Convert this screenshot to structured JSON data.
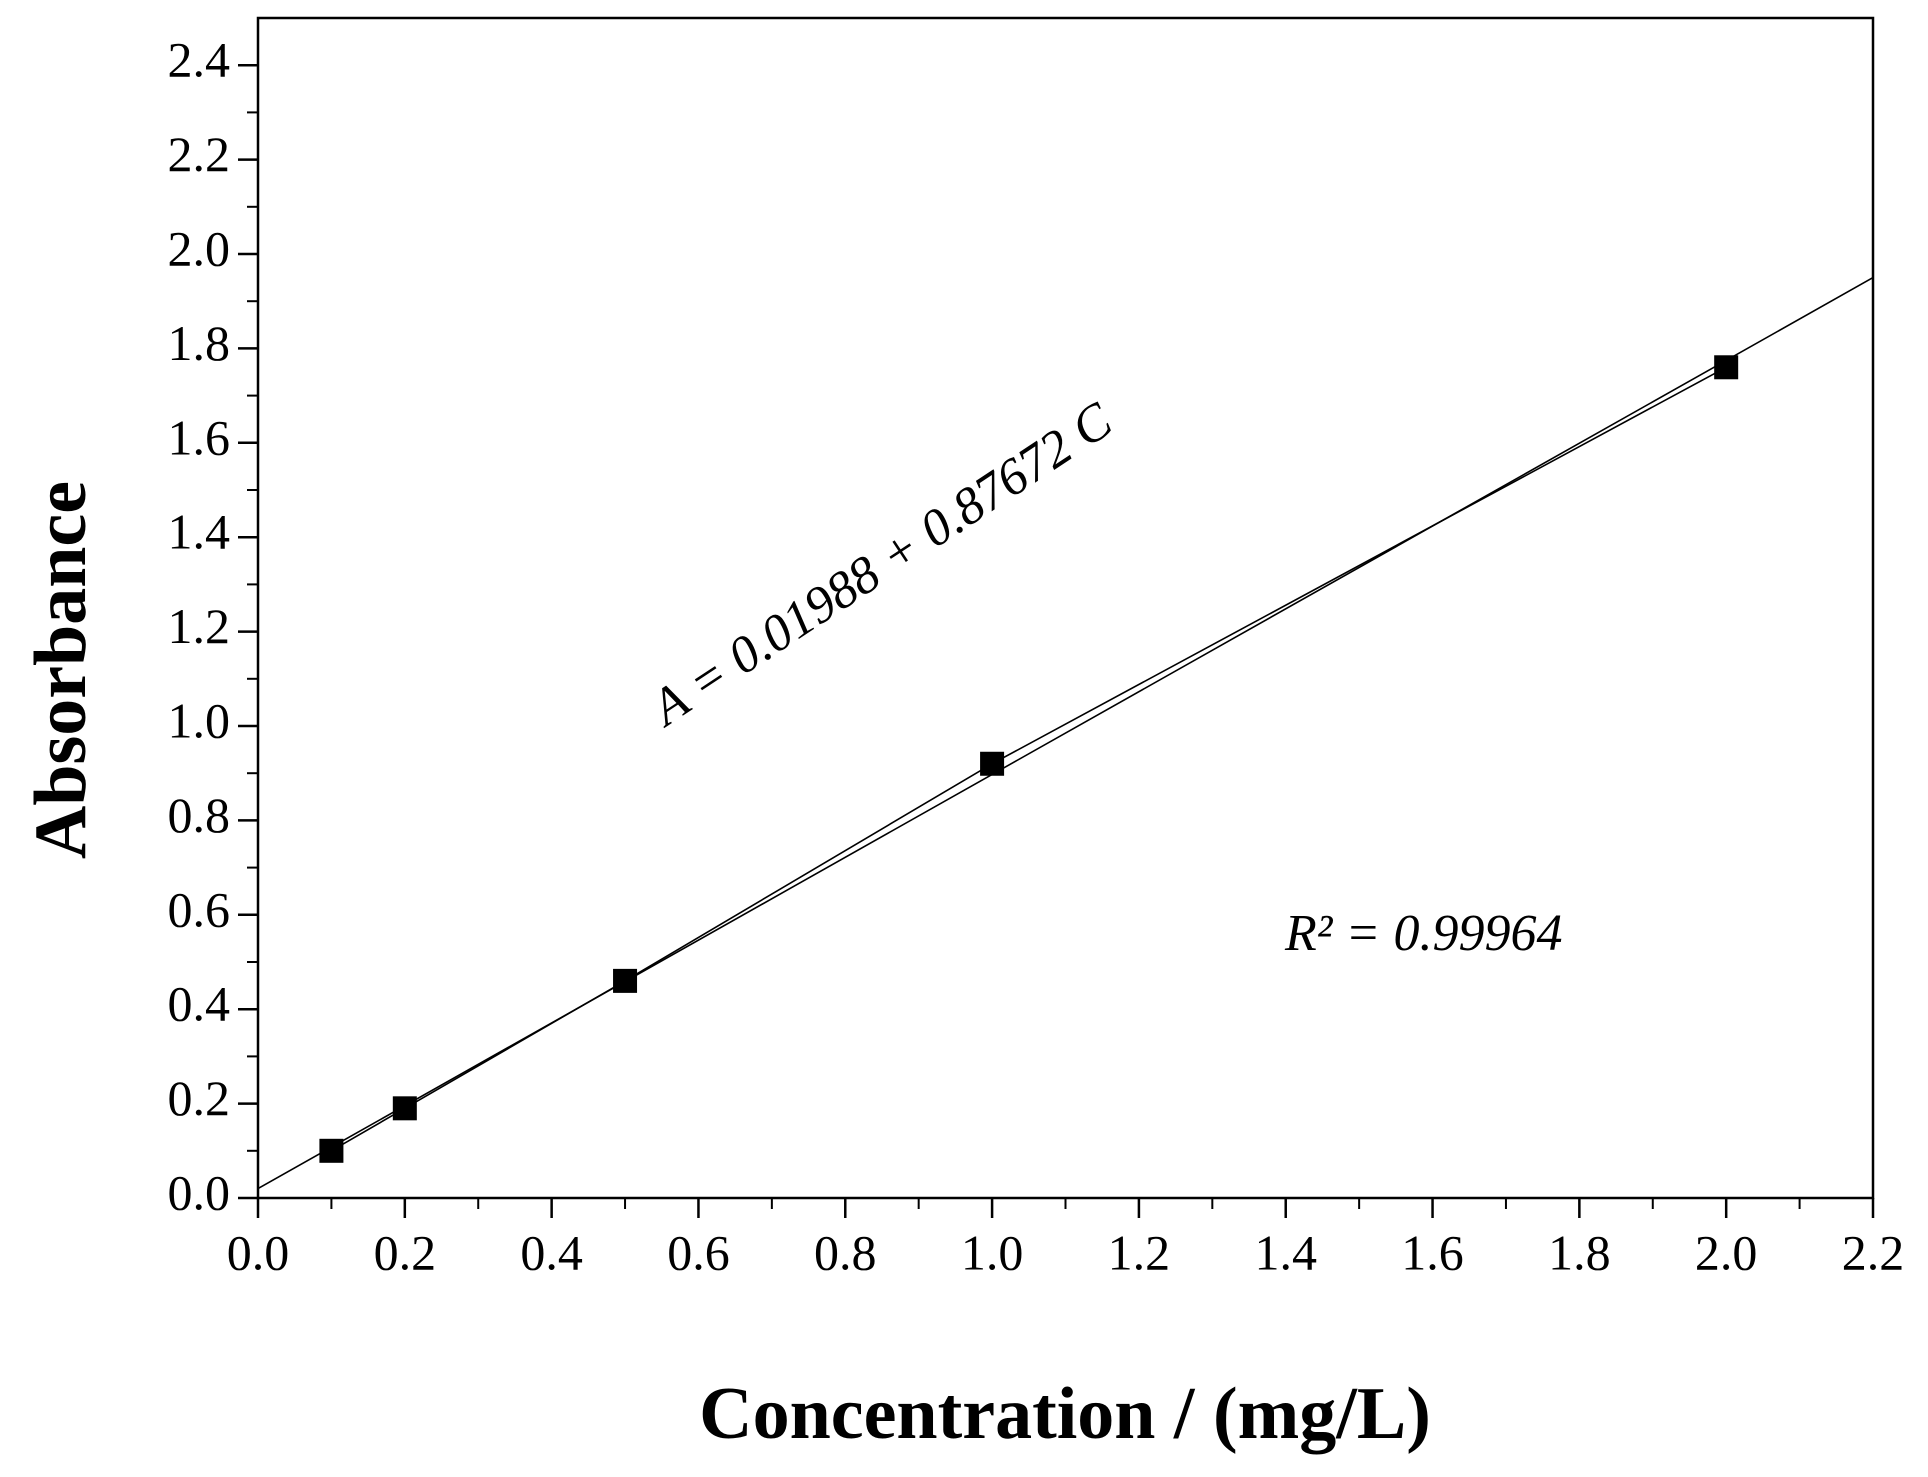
{
  "chart_data": {
    "type": "scatter",
    "x_label": "Concentration / (mg/L)",
    "y_label": "Absorbance",
    "annotations": [
      "A = 0.01988 + 0.87672 C",
      "R² = 0.99964"
    ],
    "series": [
      {
        "x": [
          0.1,
          0.2,
          0.5,
          1.0,
          2.0
        ],
        "values": [
          0.1,
          0.19,
          0.46,
          0.92,
          1.76
        ],
        "color": "#000000",
        "marker": "square",
        "line": true
      },
      {
        "x": [
          0,
          2.2
        ],
        "values": [
          0.02,
          1.95
        ],
        "color": "#000000",
        "marker": "none",
        "line": true
      }
    ],
    "xlim": [
      0,
      2.2
    ],
    "xticks": [
      {
        "value": 0,
        "label": "0.0"
      },
      0.2,
      0.4,
      0.6,
      0.8,
      {
        "value": 1,
        "label": "1.0"
      },
      1.2,
      1.4,
      1.6,
      1.8,
      {
        "value": 2,
        "label": "2.0"
      },
      2.2
    ],
    "ylim": [
      0,
      2.5
    ],
    "yticks": [
      {
        "value": 0,
        "label": "0.0"
      },
      0.2,
      0.4,
      0.6,
      0.8,
      {
        "value": 1,
        "label": "1.0"
      },
      1.2,
      1.4,
      1.6,
      1.8,
      {
        "value": 2,
        "label": "2.0"
      },
      2.2,
      2.4
    ],
    "grid": false
  }
}
